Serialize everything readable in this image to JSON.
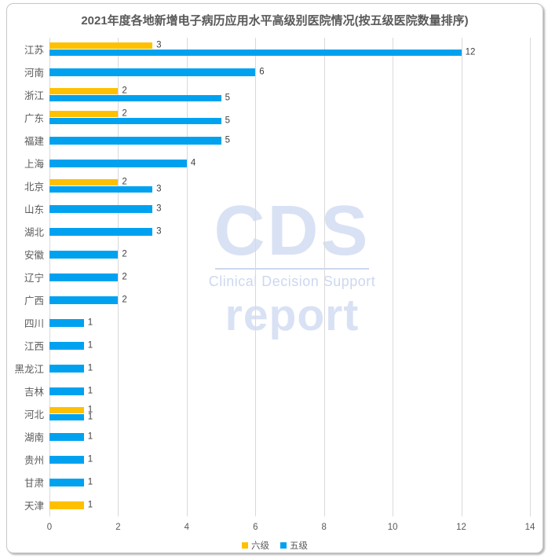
{
  "chart_data": {
    "type": "bar",
    "orientation": "horizontal",
    "title": "2021年度各地新增电子病历应用水平高级别医院情况(按五级医院数量排序)",
    "categories": [
      "江苏",
      "河南",
      "浙江",
      "广东",
      "福建",
      "上海",
      "北京",
      "山东",
      "湖北",
      "安徽",
      "辽宁",
      "广西",
      "四川",
      "江西",
      "黑龙江",
      "吉林",
      "河北",
      "湖南",
      "贵州",
      "甘肃",
      "天津"
    ],
    "series": [
      {
        "name": "六级",
        "color": "#FFC000",
        "values": [
          3,
          0,
          2,
          2,
          0,
          0,
          2,
          0,
          0,
          0,
          0,
          0,
          0,
          0,
          0,
          0,
          1,
          0,
          0,
          0,
          1
        ]
      },
      {
        "name": "五级",
        "color": "#00A2F0",
        "values": [
          12,
          6,
          5,
          5,
          5,
          4,
          3,
          3,
          3,
          2,
          2,
          2,
          1,
          1,
          1,
          1,
          1,
          1,
          1,
          1,
          0
        ]
      }
    ],
    "xlim": [
      0,
      14
    ],
    "xticks": [
      0,
      2,
      4,
      6,
      8,
      10,
      12,
      14
    ],
    "xlabel": "",
    "ylabel": "",
    "grid": "vertical",
    "legend_position": "bottom",
    "data_labels": true
  },
  "watermark": {
    "logo": "CDS",
    "subtitle": "Clinical Decision Support",
    "brand": "report"
  },
  "colors": {
    "title_text": "#595959",
    "axis_text": "#595959",
    "value_text": "#404040",
    "gridline": "#D9D9D9",
    "watermark": "#D9E2F4",
    "card_border": "#C6C6C6"
  }
}
